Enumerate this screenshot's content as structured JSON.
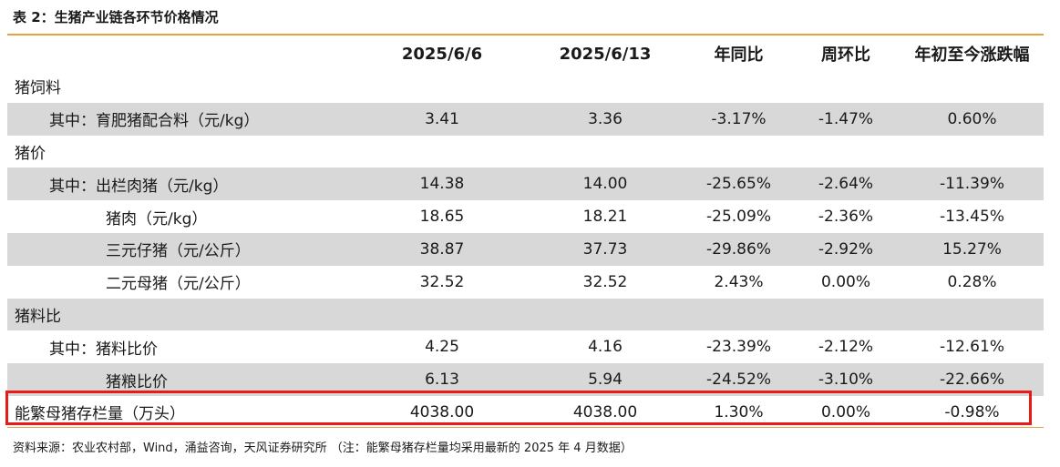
{
  "title": "表 2：生猪产业链各环节价格情况",
  "header": [
    "",
    "2025/6/6",
    "2025/6/13",
    "年同比",
    "周环比",
    "年初至今涨跌幅"
  ],
  "rows": [
    {
      "label": "猪饲料",
      "v": [
        "",
        "",
        "",
        "",
        ""
      ]
    },
    {
      "label": "其中：育肥猪配合料（元/kg）",
      "v": [
        "3.41",
        "3.36",
        "-3.17%",
        "-1.47%",
        "0.60%"
      ]
    },
    {
      "label": "猪价",
      "v": [
        "",
        "",
        "",
        "",
        ""
      ]
    },
    {
      "label": "其中：出栏肉猪（元/kg）",
      "v": [
        "14.38",
        "14.00",
        "-25.65%",
        "-2.64%",
        "-11.39%"
      ]
    },
    {
      "label": "猪肉（元/kg）",
      "v": [
        "18.65",
        "18.21",
        "-25.09%",
        "-2.36%",
        "-13.45%"
      ]
    },
    {
      "label": "三元仔猪（元/公斤）",
      "v": [
        "38.87",
        "37.73",
        "-29.86%",
        "-2.92%",
        "15.27%"
      ]
    },
    {
      "label": "二元母猪（元/公斤）",
      "v": [
        "32.52",
        "32.52",
        "2.43%",
        "0.00%",
        "0.28%"
      ]
    },
    {
      "label": "猪料比",
      "v": [
        "",
        "",
        "",
        "",
        ""
      ]
    },
    {
      "label": "其中：猪料比价",
      "v": [
        "4.25",
        "4.16",
        "-23.39%",
        "-2.12%",
        "-12.61%"
      ]
    },
    {
      "label": "猪粮比价",
      "v": [
        "6.13",
        "5.94",
        "-24.52%",
        "-3.10%",
        "-22.66%"
      ]
    },
    {
      "label": "能繁母猪存栏量（万头）",
      "v": [
        "4038.00",
        "4038.00",
        "1.30%",
        "0.00%",
        "-0.98%"
      ]
    }
  ],
  "source": "资料来源：农业农村部，Wind，涌益咨询，天风证券研究所 （注：能繁母猪存栏量均采用最新的 2025 年 4 月数据）",
  "colors": {
    "accent_line": "#e8a040",
    "shade": "#d8d8d8",
    "highlight": "#e81a1a"
  }
}
